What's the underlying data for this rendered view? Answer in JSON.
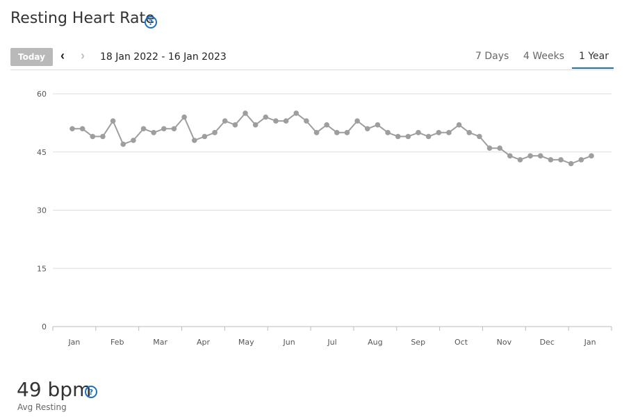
{
  "header": {
    "title": "Resting Heart Rate",
    "help_glyph": "?"
  },
  "toolbar": {
    "today_label": "Today",
    "prev_glyph": "‹",
    "next_glyph": "›",
    "date_range": "18 Jan 2022 - 16 Jan 2023",
    "ranges": [
      "7 Days",
      "4 Weeks",
      "1 Year"
    ],
    "active_range": "1 Year"
  },
  "colors": {
    "line": "#9e9e9e",
    "accent": "#1a6fc9",
    "grid": "#dddddd"
  },
  "chart_data": {
    "type": "line",
    "title": "",
    "xlabel": "",
    "ylabel": "",
    "ylim": [
      0,
      60
    ],
    "y_ticks": [
      0,
      15,
      30,
      45,
      60
    ],
    "x_tick_labels": [
      "Jan",
      "Feb",
      "Mar",
      "Apr",
      "May",
      "Jun",
      "Jul",
      "Aug",
      "Sep",
      "Oct",
      "Nov",
      "Dec",
      "Jan"
    ],
    "grid": true,
    "series": [
      {
        "name": "",
        "values": [
          51,
          51,
          49,
          49,
          53,
          47,
          48,
          51,
          50,
          51,
          51,
          54,
          48,
          49,
          50,
          53,
          52,
          55,
          52,
          54,
          53,
          53,
          55,
          53,
          50,
          52,
          50,
          50,
          53,
          51,
          52,
          50,
          49,
          49,
          50,
          49,
          50,
          50,
          52,
          50,
          49,
          46,
          46,
          44,
          43,
          44,
          44,
          43,
          43,
          42,
          43,
          44
        ]
      }
    ]
  },
  "summary": {
    "avg_value": "49 bpm",
    "avg_label": "Avg Resting",
    "help_glyph": "?"
  }
}
